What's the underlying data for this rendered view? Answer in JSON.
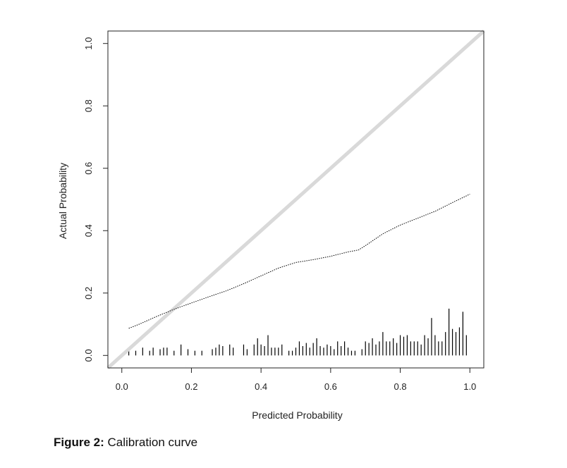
{
  "caption": {
    "label": "Figure 2:",
    "text": " Calibration curve"
  },
  "chart_data": {
    "type": "line",
    "title": "",
    "xlabel": "Predicted Probability",
    "ylabel": "Actual Probability",
    "xlim": [
      -0.04,
      1.04
    ],
    "ylim": [
      -0.04,
      1.04
    ],
    "x_ticks": [
      "0.0",
      "0.2",
      "0.4",
      "0.6",
      "0.8",
      "1.0"
    ],
    "y_ticks": [
      "0.0",
      "0.2",
      "0.4",
      "0.6",
      "0.8",
      "1.0"
    ],
    "grid": false,
    "legend": "none",
    "series": [
      {
        "style": "reference-diagonal",
        "color": "#d9d9d9",
        "x": [
          -0.04,
          1.04
        ],
        "y": [
          -0.04,
          1.04
        ]
      },
      {
        "style": "dotted-line",
        "color": "#000000",
        "x": [
          0.02,
          0.05,
          0.1,
          0.15,
          0.2,
          0.25,
          0.3,
          0.35,
          0.4,
          0.45,
          0.5,
          0.55,
          0.6,
          0.65,
          0.68,
          0.7,
          0.75,
          0.8,
          0.85,
          0.9,
          0.95,
          1.0
        ],
        "y": [
          0.087,
          0.1,
          0.125,
          0.148,
          0.168,
          0.188,
          0.207,
          0.23,
          0.255,
          0.28,
          0.298,
          0.307,
          0.318,
          0.332,
          0.338,
          0.352,
          0.39,
          0.418,
          0.44,
          0.462,
          0.49,
          0.517
        ]
      }
    ],
    "rug": {
      "color": "#000000",
      "x": [
        0.02,
        0.04,
        0.06,
        0.08,
        0.09,
        0.11,
        0.12,
        0.13,
        0.15,
        0.17,
        0.19,
        0.21,
        0.23,
        0.26,
        0.27,
        0.28,
        0.29,
        0.31,
        0.32,
        0.35,
        0.36,
        0.38,
        0.39,
        0.4,
        0.41,
        0.42,
        0.43,
        0.44,
        0.45,
        0.46,
        0.48,
        0.49,
        0.5,
        0.51,
        0.52,
        0.53,
        0.54,
        0.55,
        0.56,
        0.57,
        0.58,
        0.59,
        0.6,
        0.61,
        0.62,
        0.63,
        0.64,
        0.65,
        0.66,
        0.67,
        0.69,
        0.7,
        0.71,
        0.72,
        0.73,
        0.74,
        0.75,
        0.76,
        0.77,
        0.78,
        0.79,
        0.8,
        0.81,
        0.82,
        0.83,
        0.84,
        0.85,
        0.86,
        0.87,
        0.88,
        0.89,
        0.9,
        0.91,
        0.92,
        0.93,
        0.94,
        0.95,
        0.96,
        0.97,
        0.98,
        0.99
      ],
      "heights": [
        0.015,
        0.015,
        0.025,
        0.015,
        0.025,
        0.02,
        0.025,
        0.025,
        0.015,
        0.035,
        0.02,
        0.015,
        0.015,
        0.02,
        0.025,
        0.035,
        0.03,
        0.035,
        0.025,
        0.035,
        0.02,
        0.035,
        0.055,
        0.035,
        0.03,
        0.065,
        0.025,
        0.025,
        0.025,
        0.035,
        0.015,
        0.015,
        0.025,
        0.045,
        0.03,
        0.04,
        0.025,
        0.04,
        0.055,
        0.03,
        0.025,
        0.035,
        0.03,
        0.02,
        0.045,
        0.03,
        0.045,
        0.025,
        0.015,
        0.015,
        0.02,
        0.045,
        0.04,
        0.055,
        0.035,
        0.045,
        0.075,
        0.045,
        0.045,
        0.055,
        0.04,
        0.065,
        0.06,
        0.065,
        0.045,
        0.045,
        0.045,
        0.035,
        0.065,
        0.055,
        0.12,
        0.065,
        0.045,
        0.045,
        0.075,
        0.15,
        0.085,
        0.075,
        0.09,
        0.14,
        0.065
      ]
    }
  }
}
